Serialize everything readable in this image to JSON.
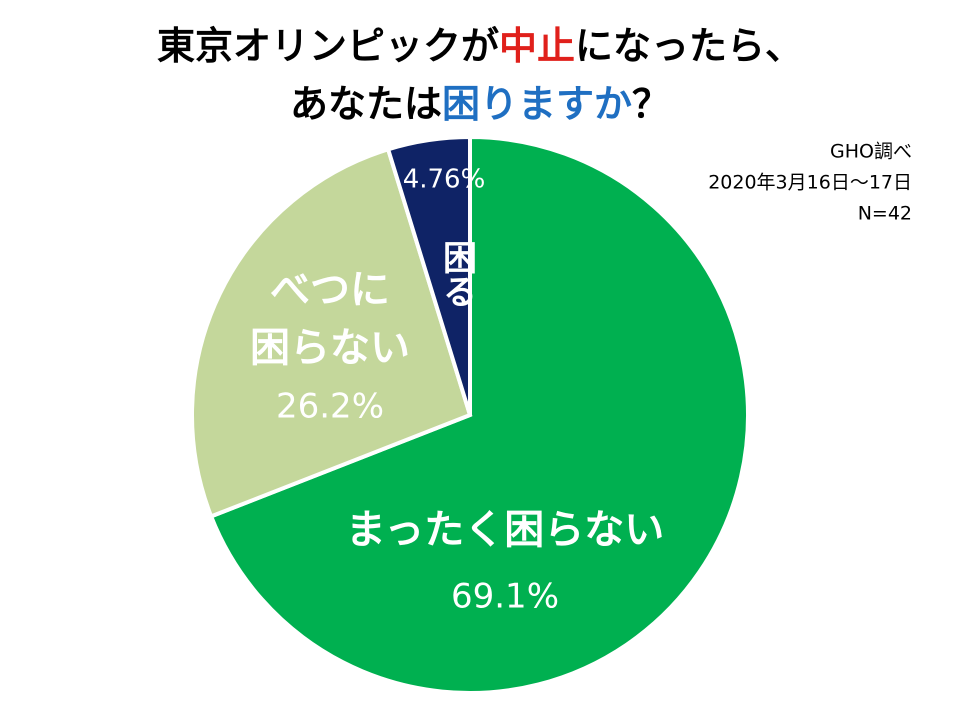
{
  "chart_data": {
    "type": "pie",
    "title_lines": [
      [
        {
          "text": "東京オリンピックが",
          "color": "#000000"
        },
        {
          "text": "中止",
          "color": "#e0201b"
        },
        {
          "text": "になったら、",
          "color": "#000000"
        }
      ],
      [
        {
          "text": "あなたは",
          "color": "#000000"
        },
        {
          "text": "困りますか",
          "color": "#1f6fc2"
        },
        {
          "text": "？",
          "color": "#000000"
        }
      ]
    ],
    "notes": [
      "GHO調べ",
      "2020年3月16日～17日",
      "N=42"
    ],
    "categories": [
      [
        "まったく困らない"
      ],
      [
        "べつに",
        "困らない"
      ],
      [
        "困る"
      ]
    ],
    "values": [
      69.1,
      26.2,
      4.76
    ],
    "value_labels": [
      "69.1%",
      "26.2%",
      "4.76%"
    ],
    "colors": [
      "#00b050",
      "#c4d79b",
      "#0f2366"
    ]
  }
}
